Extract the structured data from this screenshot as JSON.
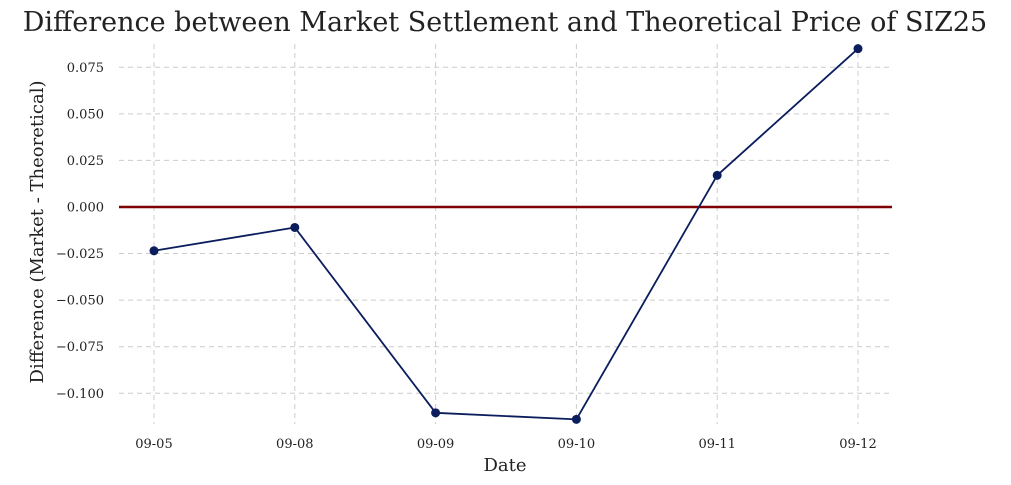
{
  "chart_data": {
    "type": "line",
    "title": "Difference between Market Settlement and Theoretical Price of SIZ25",
    "xlabel": "Date",
    "ylabel": "Difference (Market - Theoretical)",
    "categories": [
      "09-05",
      "09-08",
      "09-09",
      "09-10",
      "09-11",
      "09-12"
    ],
    "series": [
      {
        "values": [
          -0.0235,
          -0.011,
          -0.1105,
          -0.114,
          0.017,
          0.085
        ]
      }
    ],
    "yticks": [
      -0.1,
      -0.075,
      -0.05,
      -0.025,
      0.0,
      0.025,
      0.05,
      0.075
    ],
    "ytick_labels": [
      "−0.100",
      "−0.075",
      "−0.050",
      "−0.025",
      "0.000",
      "0.025",
      "0.050",
      "0.075"
    ],
    "ylim": [
      -0.1165,
      0.0875
    ],
    "reference_line": {
      "y": 0.0
    },
    "grid": true,
    "colors": {
      "line": "#0b1d5c",
      "reference": "#7f0000",
      "grid": "#cccccc",
      "text": "#222222"
    }
  }
}
